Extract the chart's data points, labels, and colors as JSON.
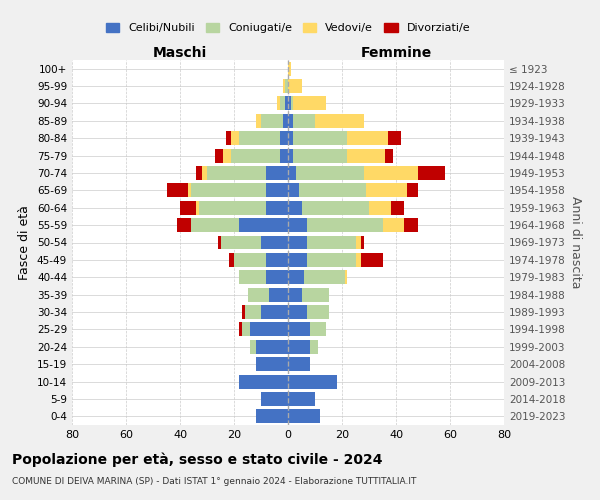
{
  "age_groups": [
    "0-4",
    "5-9",
    "10-14",
    "15-19",
    "20-24",
    "25-29",
    "30-34",
    "35-39",
    "40-44",
    "45-49",
    "50-54",
    "55-59",
    "60-64",
    "65-69",
    "70-74",
    "75-79",
    "80-84",
    "85-89",
    "90-94",
    "95-99",
    "100+"
  ],
  "birth_years": [
    "2019-2023",
    "2014-2018",
    "2009-2013",
    "2004-2008",
    "1999-2003",
    "1994-1998",
    "1989-1993",
    "1984-1988",
    "1979-1983",
    "1974-1978",
    "1969-1973",
    "1964-1968",
    "1959-1963",
    "1954-1958",
    "1949-1953",
    "1944-1948",
    "1939-1943",
    "1934-1938",
    "1929-1933",
    "1924-1928",
    "≤ 1923"
  ],
  "colors": {
    "celibi": "#4472c4",
    "coniugati": "#b8d5a0",
    "vedovi": "#ffd966",
    "divorziati": "#c00000"
  },
  "maschi": {
    "celibi": [
      12,
      10,
      18,
      12,
      12,
      14,
      10,
      7,
      8,
      8,
      10,
      18,
      8,
      8,
      8,
      3,
      3,
      2,
      1,
      0,
      0
    ],
    "coniugati": [
      0,
      0,
      0,
      0,
      2,
      3,
      6,
      8,
      10,
      12,
      15,
      18,
      25,
      28,
      22,
      18,
      15,
      8,
      2,
      1,
      0
    ],
    "vedovi": [
      0,
      0,
      0,
      0,
      0,
      0,
      0,
      0,
      0,
      0,
      0,
      0,
      1,
      1,
      2,
      3,
      3,
      2,
      1,
      1,
      0
    ],
    "divorziati": [
      0,
      0,
      0,
      0,
      0,
      1,
      1,
      0,
      0,
      2,
      1,
      5,
      6,
      8,
      2,
      3,
      2,
      0,
      0,
      0,
      0
    ]
  },
  "femmine": {
    "celibi": [
      12,
      10,
      18,
      8,
      8,
      8,
      7,
      5,
      6,
      7,
      7,
      7,
      5,
      4,
      3,
      2,
      2,
      2,
      1,
      0,
      0
    ],
    "coniugati": [
      0,
      0,
      0,
      0,
      3,
      6,
      8,
      10,
      15,
      18,
      18,
      28,
      25,
      25,
      25,
      20,
      20,
      8,
      1,
      0,
      0
    ],
    "vedovi": [
      0,
      0,
      0,
      0,
      0,
      0,
      0,
      0,
      1,
      2,
      2,
      8,
      8,
      15,
      20,
      14,
      15,
      18,
      12,
      5,
      1
    ],
    "divorziati": [
      0,
      0,
      0,
      0,
      0,
      0,
      0,
      0,
      0,
      8,
      1,
      5,
      5,
      4,
      10,
      3,
      5,
      0,
      0,
      0,
      0
    ]
  },
  "xlim": 80,
  "title": "Popolazione per età, sesso e stato civile - 2024",
  "subtitle": "COMUNE DI DEIVA MARINA (SP) - Dati ISTAT 1° gennaio 2024 - Elaborazione TUTTITALIA.IT",
  "ylabel": "Fasce di età",
  "ylabel_right": "Anni di nascita",
  "xlabel_maschi": "Maschi",
  "xlabel_femmine": "Femmine",
  "legend_labels": [
    "Celibi/Nubili",
    "Coniugati/e",
    "Vedovi/e",
    "Divorziati/e"
  ],
  "bg_color": "#f0f0f0",
  "plot_bg": "#ffffff"
}
